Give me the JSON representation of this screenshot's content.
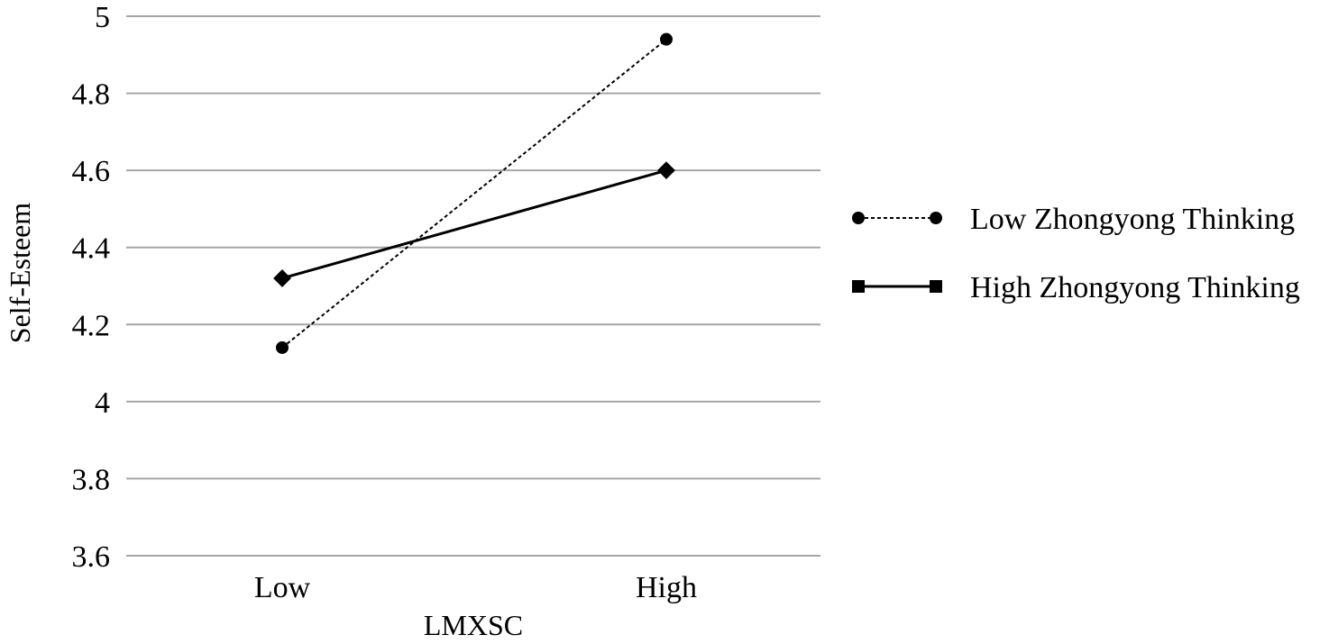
{
  "chart_data": {
    "type": "line",
    "title": "",
    "xlabel": "LMXSC",
    "ylabel": "Self-Esteem",
    "categories": [
      "Low",
      "High"
    ],
    "ylim": [
      3.6,
      5
    ],
    "yticks": [
      "3.6",
      "3.8",
      "4",
      "4.2",
      "4.4",
      "4.6",
      "4.8",
      "5"
    ],
    "grid": "horizontal",
    "legend_position": "right",
    "series": [
      {
        "name": "Low Zhongyong Thinking",
        "values": [
          4.14,
          4.94
        ],
        "line_style": "dotted",
        "marker": "circle",
        "color": "#000000"
      },
      {
        "name": "High Zhongyong Thinking",
        "values": [
          4.32,
          4.6
        ],
        "line_style": "solid",
        "marker": "square",
        "color": "#000000"
      }
    ],
    "colors": {
      "grid": "#a6a6a6",
      "text": "#000000"
    }
  }
}
